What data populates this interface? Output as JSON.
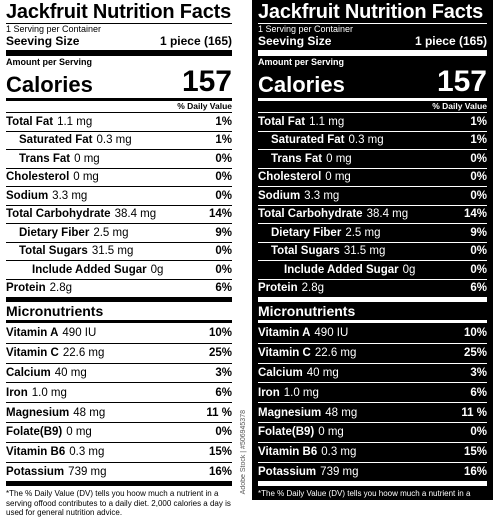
{
  "label": {
    "title": "Jackfruit Nutrition Facts",
    "servings_per_container": "1 Serving per Container",
    "serving_size_label": "Seeving Size",
    "serving_size_value": "1 piece (165)",
    "amount_per_serving": "Amount per Serving",
    "calories_label": "Calories",
    "calories_value": "157",
    "daily_value_header": "% Daily Value",
    "nutrients": [
      {
        "name": "Total Fat",
        "amount": "1.1 mg",
        "dv": "1%"
      },
      {
        "name": "Saturated Fat",
        "amount": "0.3 mg",
        "dv": "1%"
      },
      {
        "name": "Trans Fat",
        "amount": "0 mg",
        "dv": "0%"
      },
      {
        "name": "Cholesterol",
        "amount": "0 mg",
        "dv": "0%"
      },
      {
        "name": "Sodium",
        "amount": "3.3 mg",
        "dv": "0%"
      },
      {
        "name": "Total Carbohydrate",
        "amount": "38.4 mg",
        "dv": "14%"
      },
      {
        "name": "Dietary Fiber",
        "amount": "2.5 mg",
        "dv": "9%"
      },
      {
        "name": "Total Sugars",
        "amount": "31.5 mg",
        "dv": "0%"
      },
      {
        "name": "Include Added Sugar",
        "amount": "0g",
        "dv": "0%"
      },
      {
        "name": "Protein",
        "amount": "2.8g",
        "dv": "6%"
      }
    ],
    "micronutrients_title": "Micronutrients",
    "micronutrients": [
      {
        "name": "Vitamin A",
        "amount": "490 IU",
        "dv": "10%"
      },
      {
        "name": "Vitamin C",
        "amount": "22.6 mg",
        "dv": "25%"
      },
      {
        "name": "Calcium",
        "amount": "40 mg",
        "dv": "3%"
      },
      {
        "name": "Iron",
        "amount": "1.0 mg",
        "dv": "6%"
      },
      {
        "name": "Magnesium",
        "amount": "48 mg",
        "dv": "11 %"
      },
      {
        "name": "Folate(B9)",
        "amount": "0 mg",
        "dv": "0%"
      },
      {
        "name": "Vitamin B6",
        "amount": "0.3 mg",
        "dv": "15%"
      },
      {
        "name": "Potassium",
        "amount": "739 mg",
        "dv": "16%"
      }
    ],
    "footnote": "*The % Daily Value (DV) tells you hoow much a nutrient in a serving offood contributes to a daily diet. 2,000 calories a day is used for general nutrition advice."
  },
  "stock_id": "Adobe Stock | #506945378",
  "colors": {
    "light_bg": "#ffffff",
    "light_fg": "#000000",
    "dark_bg": "#000000",
    "dark_fg": "#ffffff"
  }
}
